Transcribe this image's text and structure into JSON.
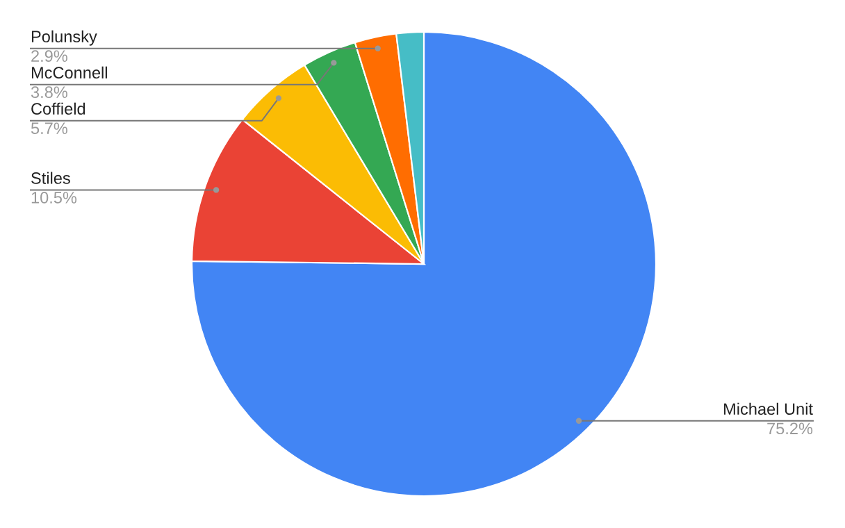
{
  "chart_data": {
    "type": "pie",
    "categories": [
      "Michael Unit",
      "Stiles",
      "Coffield",
      "McConnell",
      "Polunsky",
      null
    ],
    "values": [
      75.2,
      10.5,
      5.7,
      3.8,
      2.9,
      1.9
    ],
    "colors": [
      "#4285f4",
      "#ea4335",
      "#fbbc04",
      "#34a853",
      "#ff6d01",
      "#46bdc6"
    ],
    "value_labels": [
      "75.2%",
      "10.5%",
      "5.7%",
      "3.8%",
      "2.9%",
      null
    ]
  }
}
